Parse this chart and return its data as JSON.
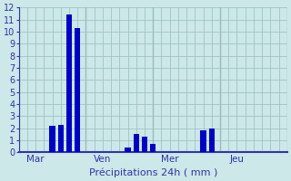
{
  "bars": [
    {
      "x": 4,
      "height": 2.2
    },
    {
      "x": 5,
      "height": 2.3
    },
    {
      "x": 6,
      "height": 11.4
    },
    {
      "x": 7,
      "height": 10.3
    },
    {
      "x": 13,
      "height": 0.4
    },
    {
      "x": 14,
      "height": 1.5
    },
    {
      "x": 15,
      "height": 1.3
    },
    {
      "x": 16,
      "height": 0.7
    },
    {
      "x": 22,
      "height": 1.8
    },
    {
      "x": 23,
      "height": 2.0
    }
  ],
  "bar_color": "#0000cc",
  "background_color": "#cce8e8",
  "grid_color": "#9bbcbc",
  "axis_color": "#3333aa",
  "text_color": "#3333aa",
  "xlabel": "Précipitations 24h ( mm )",
  "ylim": [
    0,
    12
  ],
  "yticks": [
    0,
    1,
    2,
    3,
    4,
    5,
    6,
    7,
    8,
    9,
    10,
    11,
    12
  ],
  "xlim": [
    0,
    32
  ],
  "xtick_positions": [
    2,
    10,
    18,
    26
  ],
  "xtick_labels": [
    "Mar",
    "Ven",
    "Mer",
    "Jeu"
  ],
  "vline_positions": [
    0,
    8,
    16,
    24,
    32
  ],
  "bar_width": 0.7
}
